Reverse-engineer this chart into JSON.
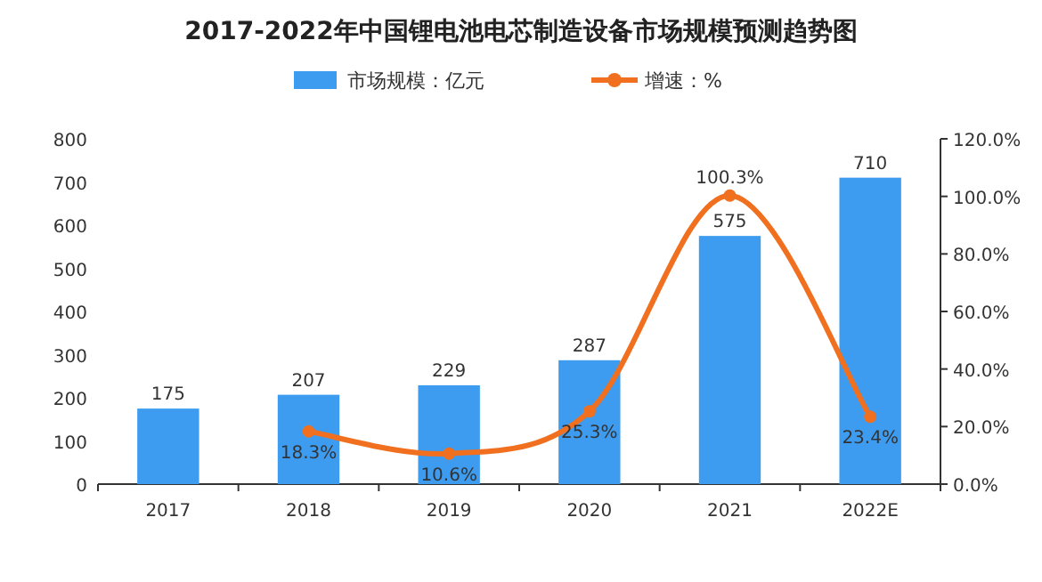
{
  "chart_data": {
    "type": "bar",
    "title": "2017-2022年中国锂电池电芯制造设备市场规模预测趋势图",
    "categories": [
      "2017",
      "2018",
      "2019",
      "2020",
      "2021",
      "2022E"
    ],
    "series": [
      {
        "name": "市场规模：亿元",
        "color": "#3d9cf0",
        "values": [
          175,
          207,
          229,
          287,
          575,
          710
        ],
        "value_labels": [
          "175",
          "207",
          "229",
          "287",
          "575",
          "710"
        ]
      },
      {
        "name": "增速：%",
        "type": "line",
        "axis": "y2",
        "color": "#f07020",
        "marker": "circle",
        "values": [
          null,
          18.3,
          10.6,
          25.3,
          100.3,
          23.4
        ],
        "value_labels": [
          null,
          "18.3%",
          "10.6%",
          "25.3%",
          "100.3%",
          "23.4%"
        ]
      }
    ],
    "ylim": [
      0,
      800
    ],
    "yticks": [
      0,
      100,
      200,
      300,
      400,
      500,
      600,
      700,
      800
    ],
    "y2lim": [
      0,
      120
    ],
    "y2ticks": [
      {
        "value": 0,
        "label": "0.0%"
      },
      {
        "value": 20,
        "label": "20.0%"
      },
      {
        "value": 40,
        "label": "40.0%"
      },
      {
        "value": 60,
        "label": "60.0%"
      },
      {
        "value": 80,
        "label": "80.0%"
      },
      {
        "value": 100,
        "label": "100.0%"
      },
      {
        "value": 120,
        "label": "120.0%"
      }
    ],
    "legend": "top"
  }
}
